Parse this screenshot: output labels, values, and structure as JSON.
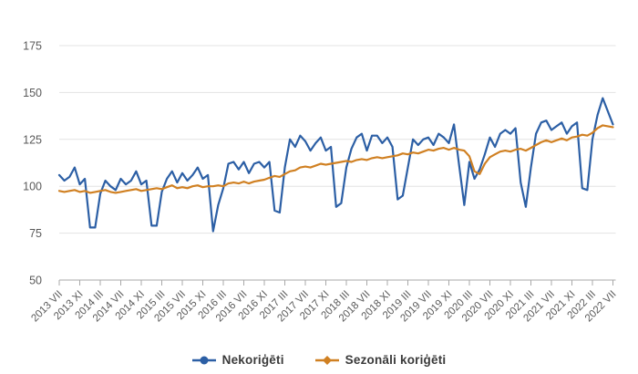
{
  "chart_data": {
    "type": "line",
    "title": "",
    "xlabel": "",
    "ylabel": "",
    "ylim": [
      50,
      175
    ],
    "yticks": [
      50,
      75,
      100,
      125,
      150,
      175
    ],
    "grid": true,
    "legend_position": "bottom",
    "x_tick_every": 4,
    "x_tick_labels": [
      "2013 VII",
      "2013 XI",
      "2014 III",
      "2014 VII",
      "2014 XI",
      "2015 III",
      "2015 VII",
      "2015 XI",
      "2016 III",
      "2016 VII",
      "2016 XI",
      "2017 III",
      "2017 VII",
      "2017 XI",
      "2018 III",
      "2018 VII",
      "2018 XI",
      "2019 III",
      "2019 VII",
      "2019 XI",
      "2020 III",
      "2020 VII",
      "2020 XI",
      "2021 III",
      "2021 VII",
      "2021 XI",
      "2022 III",
      "2022 VII"
    ],
    "x_range_months": [
      "2013 VII",
      "2022 VII"
    ],
    "axis_color": "#a8a8a8",
    "grid_color": "#e3e3e3",
    "label_color": "#595959",
    "series": [
      {
        "name": "Nekoriģēti",
        "color": "#2c5fa5",
        "marker": "circle",
        "values": [
          106,
          103,
          105,
          110,
          101,
          104,
          78,
          78,
          96,
          103,
          100,
          98,
          104,
          101,
          103,
          108,
          101,
          103,
          79,
          79,
          97,
          104,
          108,
          102,
          107,
          103,
          106,
          110,
          104,
          106,
          76,
          90,
          99,
          112,
          113,
          109,
          113,
          107,
          112,
          113,
          110,
          113,
          87,
          86,
          110,
          125,
          121,
          127,
          124,
          119,
          123,
          126,
          119,
          121,
          89,
          91,
          110,
          120,
          126,
          128,
          119,
          127,
          127,
          123,
          126,
          121,
          93,
          95,
          110,
          125,
          122,
          125,
          126,
          122,
          128,
          126,
          123,
          133,
          111,
          90,
          113,
          104,
          109,
          117,
          126,
          121,
          128,
          130,
          128,
          131,
          102,
          89,
          110,
          128,
          134,
          135,
          130,
          132,
          134,
          128,
          132,
          134,
          99,
          98,
          125,
          138,
          147,
          140,
          133
        ]
      },
      {
        "name": "Sezonāli koriģēti",
        "color": "#d08022",
        "marker": "diamond",
        "values": [
          97.5,
          97,
          97.5,
          98,
          97,
          97.5,
          96.5,
          97,
          97.5,
          98,
          97,
          96.5,
          97,
          97.5,
          98,
          98.5,
          97.5,
          98,
          98.5,
          99,
          98.5,
          99.5,
          100.5,
          99,
          99.5,
          99,
          100,
          100.5,
          99.5,
          100,
          100,
          100.5,
          100,
          101.5,
          102,
          101.5,
          102.5,
          101.5,
          102.5,
          103,
          103.5,
          104.5,
          105.5,
          105,
          106.5,
          108,
          108.5,
          110,
          110.5,
          110,
          111,
          112,
          111.5,
          112,
          112.5,
          113,
          113.5,
          113,
          114,
          114.5,
          114,
          115,
          115.5,
          115,
          115.5,
          116,
          116.5,
          117.5,
          117,
          118,
          117.5,
          118.5,
          119.5,
          119,
          120,
          120.5,
          119.5,
          120.5,
          119.5,
          119,
          116,
          108,
          106.5,
          112,
          115.5,
          117,
          118.5,
          119,
          118.5,
          119.5,
          120,
          119,
          120.5,
          122,
          123.5,
          124.5,
          123.5,
          124.5,
          125.5,
          124.5,
          126,
          126.5,
          127.5,
          127,
          128.5,
          131,
          132.5,
          132,
          131.5
        ]
      }
    ]
  }
}
